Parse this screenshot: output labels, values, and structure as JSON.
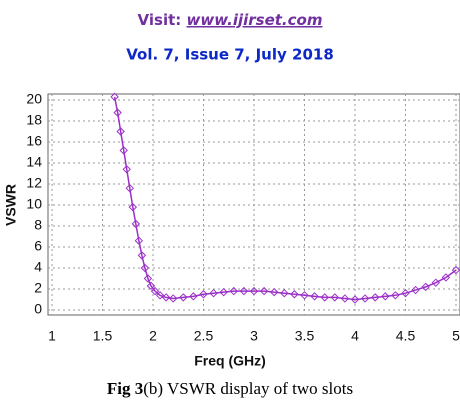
{
  "header": {
    "visit": "Visit:",
    "url": "www.ijirset.com",
    "volume": "Vol. 7, Issue 7, July 2018"
  },
  "chart_data": {
    "type": "line",
    "xlabel": "Freq (GHz)",
    "ylabel": "VSWR",
    "x": [
      1.62,
      1.65,
      1.68,
      1.71,
      1.74,
      1.77,
      1.8,
      1.83,
      1.86,
      1.89,
      1.92,
      1.95,
      1.98,
      2.02,
      2.07,
      2.13,
      2.2,
      2.3,
      2.4,
      2.5,
      2.6,
      2.7,
      2.8,
      2.9,
      3.0,
      3.1,
      3.2,
      3.3,
      3.4,
      3.5,
      3.6,
      3.7,
      3.8,
      3.9,
      4.0,
      4.1,
      4.2,
      4.3,
      4.4,
      4.5,
      4.6,
      4.7,
      4.8,
      4.9,
      5.0
    ],
    "values": [
      20.3,
      18.8,
      17.0,
      15.2,
      13.4,
      11.6,
      9.8,
      8.2,
      6.6,
      5.2,
      4.0,
      3.0,
      2.3,
      1.8,
      1.4,
      1.2,
      1.1,
      1.2,
      1.3,
      1.5,
      1.6,
      1.7,
      1.8,
      1.8,
      1.8,
      1.8,
      1.7,
      1.6,
      1.5,
      1.4,
      1.3,
      1.2,
      1.2,
      1.1,
      1.0,
      1.1,
      1.2,
      1.3,
      1.4,
      1.6,
      1.9,
      2.2,
      2.6,
      3.1,
      3.8
    ],
    "color": "#9b30c8",
    "xlim": [
      1,
      5
    ],
    "ylim": [
      0,
      20
    ],
    "xticks": [
      1,
      1.5,
      2,
      2.5,
      3,
      3.5,
      4,
      4.5,
      5
    ],
    "yticks": [
      0,
      2,
      4,
      6,
      8,
      10,
      12,
      14,
      16,
      18,
      20
    ],
    "grid": true
  },
  "caption": {
    "label": "Fig 3",
    "text": "(b) VSWR display of two slots"
  }
}
